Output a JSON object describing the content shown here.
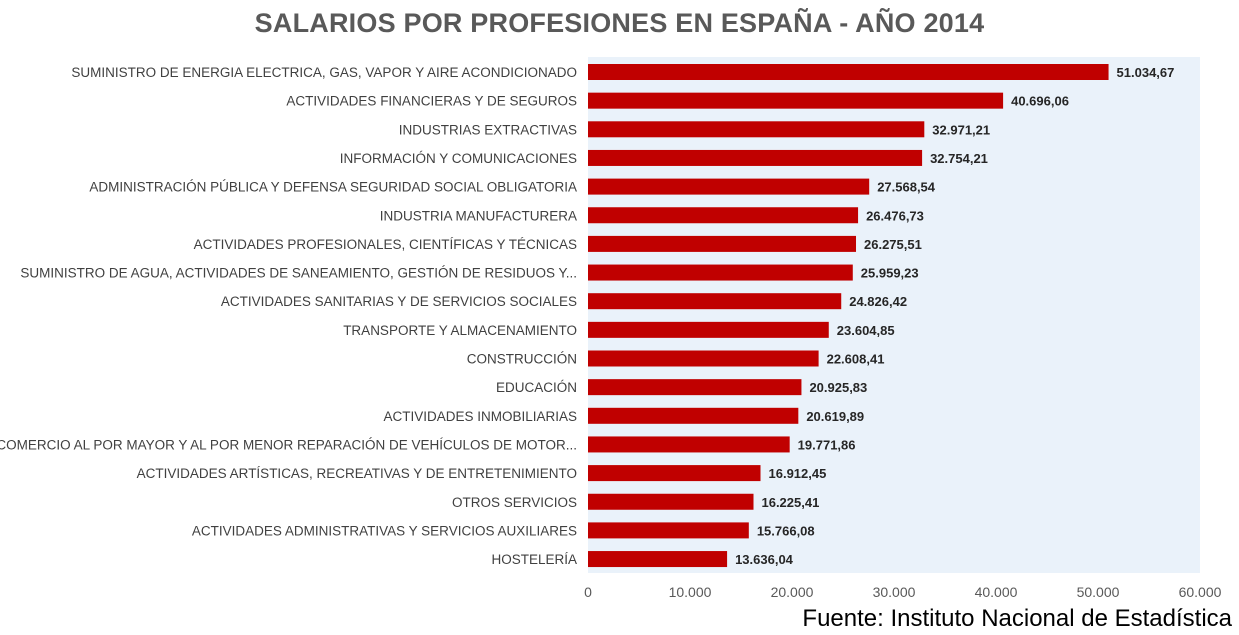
{
  "chart_data": {
    "type": "bar",
    "orientation": "horizontal",
    "title": "SALARIOS POR PROFESIONES EN ESPAÑA - AÑO 2014",
    "categories": [
      "SUMINISTRO DE ENERGIA ELECTRICA, GAS, VAPOR Y AIRE ACONDICIONADO",
      "ACTIVIDADES FINANCIERAS Y DE SEGUROS",
      "INDUSTRIAS EXTRACTIVAS",
      "INFORMACIÓN Y COMUNICACIONES",
      "ADMINISTRACIÓN PÚBLICA Y DEFENSA SEGURIDAD SOCIAL OBLIGATORIA",
      "INDUSTRIA MANUFACTURERA",
      "ACTIVIDADES PROFESIONALES, CIENTÍFICAS Y TÉCNICAS",
      "SUMINISTRO DE AGUA, ACTIVIDADES DE SANEAMIENTO, GESTIÓN DE RESIDUOS Y...",
      "ACTIVIDADES SANITARIAS Y DE SERVICIOS SOCIALES",
      "TRANSPORTE Y ALMACENAMIENTO",
      "CONSTRUCCIÓN",
      "EDUCACIÓN",
      "ACTIVIDADES INMOBILIARIAS",
      "COMERCIO AL POR MAYOR Y AL POR MENOR REPARACIÓN DE VEHÍCULOS DE MOTOR...",
      "ACTIVIDADES ARTÍSTICAS, RECREATIVAS Y DE ENTRETENIMIENTO",
      "OTROS SERVICIOS",
      "ACTIVIDADES ADMINISTRATIVAS Y SERVICIOS AUXILIARES",
      "HOSTELERÍA"
    ],
    "values": [
      51034.67,
      40696.06,
      32971.21,
      32754.21,
      27568.54,
      26476.73,
      26275.51,
      25959.23,
      24826.42,
      23604.85,
      22608.41,
      20925.83,
      20619.89,
      19771.86,
      16912.45,
      16225.41,
      15766.08,
      13636.04
    ],
    "data_labels": [
      "51.034,67",
      "40.696,06",
      "32.971,21",
      "32.754,21",
      "27.568,54",
      "26.476,73",
      "26.275,51",
      "25.959,23",
      "24.826,42",
      "23.604,85",
      "22.608,41",
      "20.925,83",
      "20.619,89",
      "19.771,86",
      "16.912,45",
      "16.225,41",
      "15.766,08",
      "13.636,04"
    ],
    "xlim": [
      0,
      60000
    ],
    "xticks": [
      0,
      10000,
      20000,
      30000,
      40000,
      50000,
      60000
    ],
    "xtick_labels": [
      "0",
      "10.000",
      "20.000",
      "30.000",
      "40.000",
      "50.000",
      "60.000"
    ],
    "xlabel": "",
    "ylabel": "",
    "grid": false,
    "legend": "none",
    "colors": {
      "bar": "#c00000",
      "plot_background": "#eaf2fa",
      "title": "#595959",
      "category_label": "#404040",
      "value_label": "#262626",
      "tick_label": "#595959"
    }
  },
  "source": "Fuente: Instituto Nacional de Estadística"
}
